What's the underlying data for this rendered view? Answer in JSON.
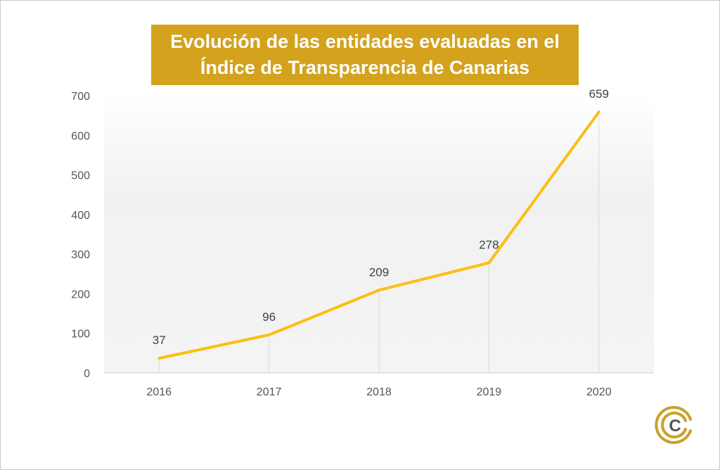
{
  "title_line1": "Evolución de las entidades evaluadas en el",
  "title_line2": "Índice de Transparencia de Canarias",
  "colors": {
    "title_bg": "#d4a21c",
    "line": "#fbbf10",
    "logo_gold": "#c9a227",
    "logo_gray": "#555555"
  },
  "logo": {
    "letter": "C"
  },
  "chart_data": {
    "type": "line",
    "title": "Evolución de las entidades evaluadas en el Índice de Transparencia de Canarias",
    "categories": [
      "2016",
      "2017",
      "2018",
      "2019",
      "2020"
    ],
    "series": [
      {
        "values": [
          37,
          96,
          209,
          278,
          659
        ]
      }
    ],
    "data_labels": [
      "37",
      "96",
      "209",
      "278",
      "659"
    ],
    "y_ticks": [
      "0",
      "100",
      "200",
      "300",
      "400",
      "500",
      "600",
      "700"
    ],
    "ylim": [
      0,
      700
    ],
    "xlabel": "",
    "ylabel": "",
    "grid": false,
    "drop_lines": true,
    "legend": "none"
  }
}
